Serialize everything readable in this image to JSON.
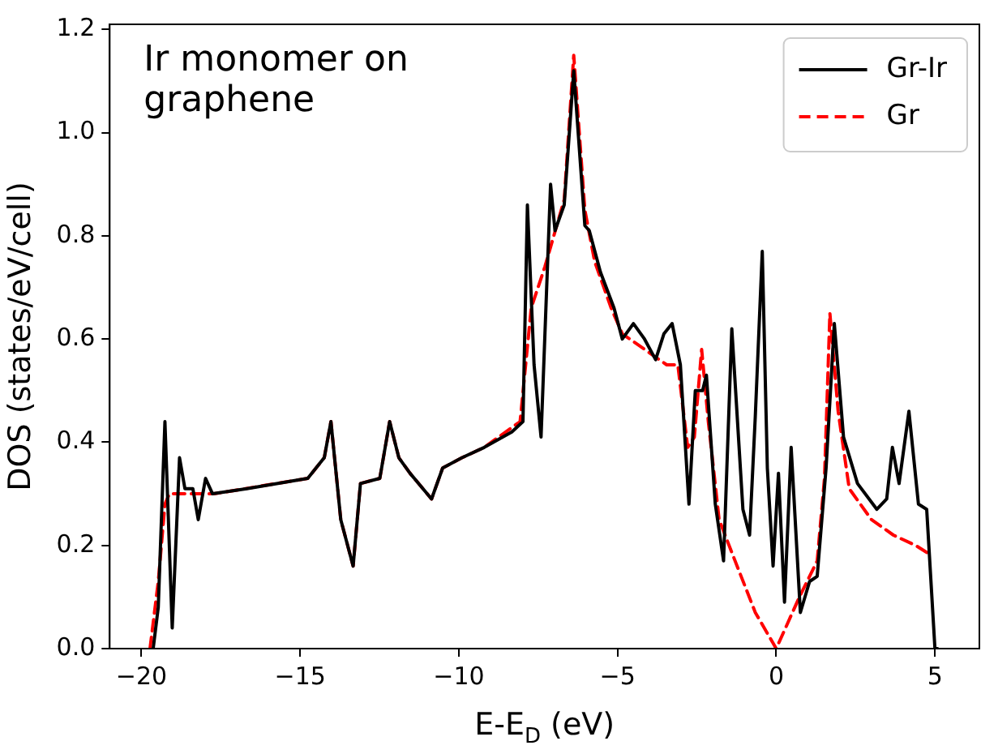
{
  "chart_data": {
    "type": "line",
    "annotations": [
      "Ir monomer on\ngraphene"
    ],
    "xlabel": "E-E$_{D}$ (eV)",
    "ylabel": "DOS (states/eV/cell)",
    "xlim": [
      -21,
      6.4
    ],
    "ylim": [
      0,
      1.21
    ],
    "xticks": [
      {
        "value": -20,
        "label": "−20"
      },
      {
        "value": -15,
        "label": "−15"
      },
      {
        "value": -10,
        "label": "−10"
      },
      {
        "value": -5,
        "label": "−5"
      },
      0,
      5
    ],
    "yticks": [
      {
        "value": 0,
        "label": "0.0"
      },
      0.2,
      0.4,
      0.6,
      0.8,
      {
        "value": 1,
        "label": "1.0"
      },
      1.2
    ],
    "grid": false,
    "legend": "top right",
    "marker": "none",
    "series": [
      {
        "name": "Gr-Ir",
        "color": "#000000",
        "line_style": "solid",
        "x": [
          -19.63,
          -19.47,
          -19.26,
          -19.03,
          -18.8,
          -18.63,
          -18.38,
          -18.21,
          -17.98,
          -17.76,
          -16.68,
          -14.76,
          -14.24,
          -14.03,
          -13.72,
          -13.33,
          -13.1,
          -12.49,
          -12.18,
          -11.89,
          -11.54,
          -10.86,
          -10.51,
          -9.9,
          -9.2,
          -8.33,
          -7.98,
          -7.84,
          -7.63,
          -7.41,
          -7.11,
          -6.97,
          -6.68,
          -6.38,
          -6.03,
          -5.89,
          -5.54,
          -5.11,
          -4.85,
          -4.5,
          -4.15,
          -3.8,
          -3.54,
          -3.28,
          -3.02,
          -2.75,
          -2.55,
          -2.32,
          -2.2,
          -1.92,
          -1.66,
          -1.4,
          -1.05,
          -0.84,
          -0.66,
          -0.44,
          -0.28,
          -0.1,
          0.07,
          0.26,
          0.47,
          0.76,
          1.05,
          1.29,
          1.57,
          1.83,
          2.12,
          2.56,
          3.17,
          3.48,
          3.66,
          3.87,
          4.18,
          4.48,
          4.74,
          5.0,
          5.08
        ],
        "values": [
          0,
          0.08,
          0.44,
          0.04,
          0.37,
          0.31,
          0.31,
          0.25,
          0.33,
          0.3,
          0.31,
          0.33,
          0.37,
          0.44,
          0.25,
          0.16,
          0.32,
          0.33,
          0.44,
          0.37,
          0.34,
          0.29,
          0.35,
          0.37,
          0.39,
          0.42,
          0.44,
          0.86,
          0.55,
          0.41,
          0.9,
          0.81,
          0.86,
          1.12,
          0.82,
          0.81,
          0.73,
          0.66,
          0.6,
          0.63,
          0.6,
          0.56,
          0.61,
          0.63,
          0.55,
          0.28,
          0.5,
          0.5,
          0.53,
          0.28,
          0.17,
          0.62,
          0.27,
          0.22,
          0.45,
          0.77,
          0.35,
          0.16,
          0.34,
          0.09,
          0.39,
          0.07,
          0.13,
          0.14,
          0.35,
          0.63,
          0.41,
          0.32,
          0.27,
          0.29,
          0.39,
          0.32,
          0.46,
          0.28,
          0.27,
          0,
          0
        ]
      },
      {
        "name": "Gr",
        "color": "#ff0000",
        "line_style": "dashed",
        "x": [
          -19.73,
          -19.47,
          -19.26,
          -19.12,
          -17.72,
          -14.76,
          -14.24,
          -14.03,
          -13.72,
          -13.33,
          -13.1,
          -12.49,
          -12.18,
          -11.89,
          -11.54,
          -10.86,
          -10.51,
          -9.9,
          -9.2,
          -8.07,
          -7.72,
          -7.29,
          -6.68,
          -6.38,
          -6.03,
          -5.72,
          -5.2,
          -4.85,
          -4.15,
          -3.45,
          -3.1,
          -2.79,
          -2.58,
          -2.35,
          -2.14,
          -1.8,
          -1.36,
          -0.66,
          0.0,
          0.73,
          1.29,
          1.52,
          1.69,
          1.95,
          2.3,
          3.0,
          3.69,
          4.39,
          4.91
        ],
        "values": [
          0,
          0.13,
          0.28,
          0.3,
          0.3,
          0.33,
          0.37,
          0.44,
          0.25,
          0.16,
          0.32,
          0.33,
          0.44,
          0.37,
          0.34,
          0.29,
          0.35,
          0.37,
          0.39,
          0.44,
          0.66,
          0.74,
          0.87,
          1.15,
          0.85,
          0.75,
          0.66,
          0.61,
          0.58,
          0.55,
          0.55,
          0.39,
          0.41,
          0.58,
          0.44,
          0.25,
          0.18,
          0.07,
          0.0,
          0.1,
          0.17,
          0.33,
          0.65,
          0.46,
          0.31,
          0.25,
          0.22,
          0.2,
          0.18
        ]
      }
    ]
  }
}
